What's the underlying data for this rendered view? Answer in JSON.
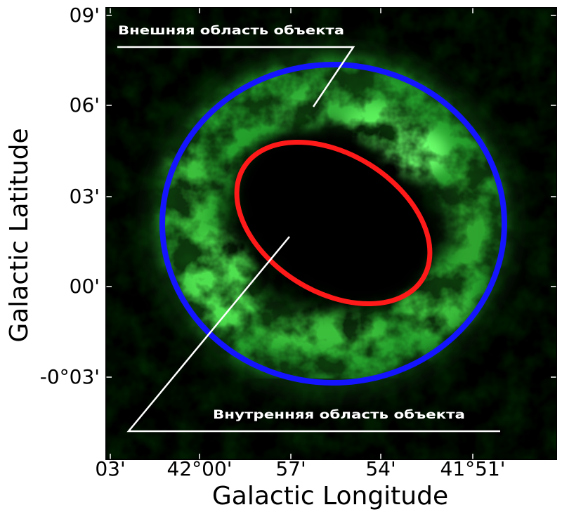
{
  "figure": {
    "x_axis": {
      "title": "Galactic Longitude",
      "ticks": [
        "03'",
        "42°00'",
        "57'",
        "54'",
        "41°51'"
      ]
    },
    "y_axis": {
      "title": "Galactic Latitude",
      "ticks": [
        "09'",
        "06'",
        "03'",
        "00'",
        "-0°03'"
      ]
    },
    "annotations": {
      "outer_region_label": "Внешняя область объекта",
      "inner_region_label": "Внутренняя область объекта"
    },
    "colors": {
      "outer_region": "#1414ff",
      "inner_region": "#ff1a1a",
      "emission": "#25a02c",
      "background": "#000000",
      "annotation": "#ffffff"
    }
  }
}
